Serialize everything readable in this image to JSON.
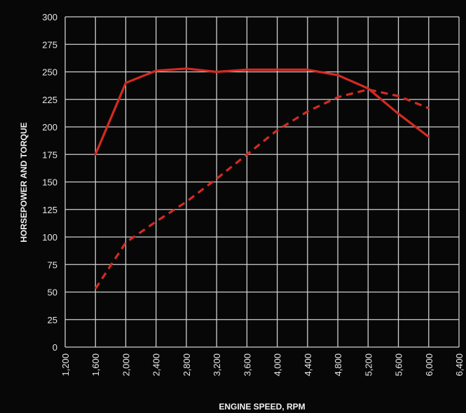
{
  "chart_data": {
    "type": "line",
    "title": "",
    "xlabel": "ENGINE SPEED, RPM",
    "ylabel": "HORSEPOWER AND TORQUE",
    "xlim": [
      1200,
      6400
    ],
    "ylim": [
      0,
      300
    ],
    "x_ticks": [
      "1,200",
      "1,600",
      "2,000",
      "2,400",
      "2,800",
      "3,200",
      "3,600",
      "4,000",
      "4,400",
      "4,800",
      "5,200",
      "5,600",
      "6,000",
      "6,400"
    ],
    "y_ticks": [
      "0",
      "25",
      "50",
      "75",
      "100",
      "125",
      "150",
      "175",
      "200",
      "225",
      "250",
      "275",
      "300"
    ],
    "grid": true,
    "legend": "none",
    "series": [
      {
        "line_style": "solid",
        "color": "#d42a22",
        "points": [
          [
            1600,
            175
          ],
          [
            2000,
            240
          ],
          [
            2400,
            251
          ],
          [
            2800,
            253
          ],
          [
            3200,
            250
          ],
          [
            3600,
            252
          ],
          [
            4000,
            252
          ],
          [
            4400,
            252
          ],
          [
            4800,
            247
          ],
          [
            5200,
            235
          ],
          [
            5600,
            212
          ],
          [
            6000,
            191
          ]
        ]
      },
      {
        "line_style": "dashed",
        "color": "#d42a22",
        "points": [
          [
            1600,
            53
          ],
          [
            2000,
            95
          ],
          [
            2400,
            114
          ],
          [
            2800,
            132
          ],
          [
            3200,
            153
          ],
          [
            3600,
            175
          ],
          [
            4000,
            197
          ],
          [
            4400,
            214
          ],
          [
            4800,
            227
          ],
          [
            5200,
            234
          ],
          [
            5600,
            228
          ],
          [
            6000,
            217
          ]
        ]
      }
    ]
  },
  "colors": {
    "background": "#070707",
    "grid": "#cfcfcf",
    "text": "#ececec"
  }
}
